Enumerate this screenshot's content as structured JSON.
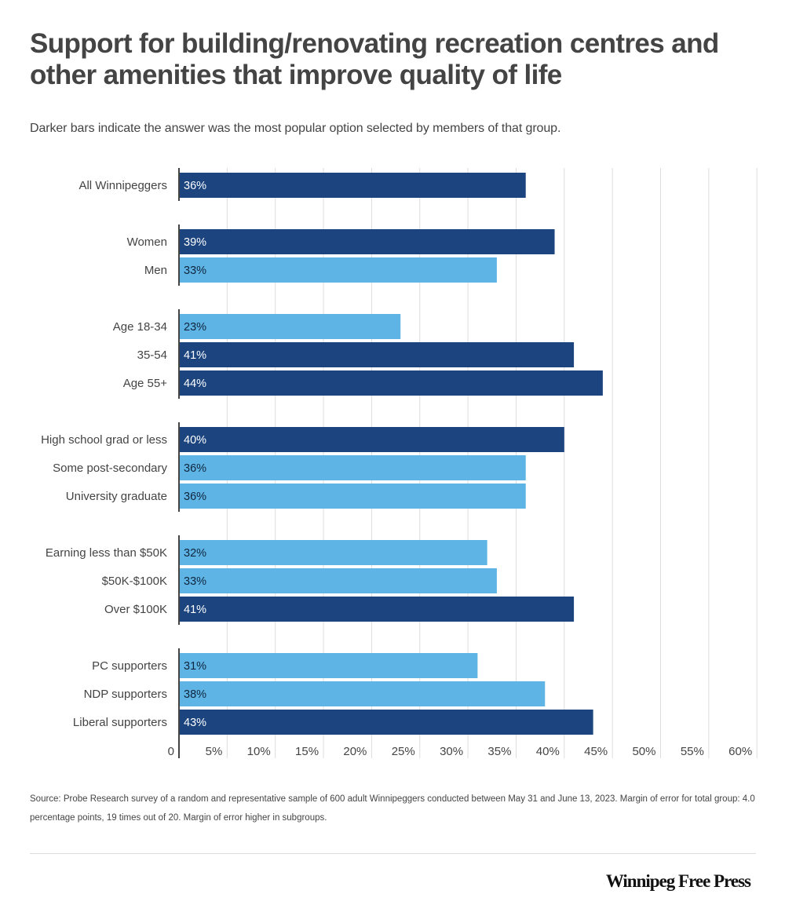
{
  "header": {
    "title": "Support for building/renovating recreation centres and other amenities that improve quality of life",
    "subtitle": "Darker bars indicate the answer was the most popular option selected by members of that group."
  },
  "footer": {
    "source": "Source: Probe Research survey of a random and representative sample of 600 adult Winnipeggers conducted between May 31 and June 13, 2023. Margin of error for total group: 4.0 percentage points, 19 times out of 20. Margin of error higher in subgroups.",
    "logo": "Winnipeg Free Press"
  },
  "colors": {
    "dark_bar": "#1c4580",
    "light_bar": "#5eb4e4",
    "dark_label": "#ffffff",
    "light_label": "#10253f",
    "grid": "#dddddd",
    "axis": "#444444"
  },
  "chart_data": {
    "type": "bar",
    "orientation": "horizontal",
    "title": "Support for building/renovating recreation centres and other amenities that improve quality of life",
    "xlabel": "",
    "ylabel": "",
    "xlim": [
      0,
      60
    ],
    "grid": true,
    "x_ticks": [
      "0",
      "5%",
      "10%",
      "15%",
      "20%",
      "25%",
      "30%",
      "35%",
      "40%",
      "45%",
      "50%",
      "55%",
      "60%"
    ],
    "groups": [
      {
        "rows": [
          {
            "label": "All Winnipeggers",
            "value": 36,
            "most_popular": true
          }
        ]
      },
      {
        "rows": [
          {
            "label": "Women",
            "value": 39,
            "most_popular": true
          },
          {
            "label": "Men",
            "value": 33,
            "most_popular": false
          }
        ]
      },
      {
        "rows": [
          {
            "label": "Age 18-34",
            "value": 23,
            "most_popular": false
          },
          {
            "label": "35-54",
            "value": 41,
            "most_popular": true
          },
          {
            "label": "Age 55+",
            "value": 44,
            "most_popular": true
          }
        ]
      },
      {
        "rows": [
          {
            "label": "High school grad or less",
            "value": 40,
            "most_popular": true
          },
          {
            "label": "Some post-secondary",
            "value": 36,
            "most_popular": false
          },
          {
            "label": "University graduate",
            "value": 36,
            "most_popular": false
          }
        ]
      },
      {
        "rows": [
          {
            "label": "Earning less than $50K",
            "value": 32,
            "most_popular": false
          },
          {
            "label": "$50K-$100K",
            "value": 33,
            "most_popular": false
          },
          {
            "label": "Over $100K",
            "value": 41,
            "most_popular": true
          }
        ]
      },
      {
        "rows": [
          {
            "label": "PC supporters",
            "value": 31,
            "most_popular": false
          },
          {
            "label": "NDP supporters",
            "value": 38,
            "most_popular": false
          },
          {
            "label": "Liberal supporters",
            "value": 43,
            "most_popular": true
          }
        ]
      }
    ]
  }
}
